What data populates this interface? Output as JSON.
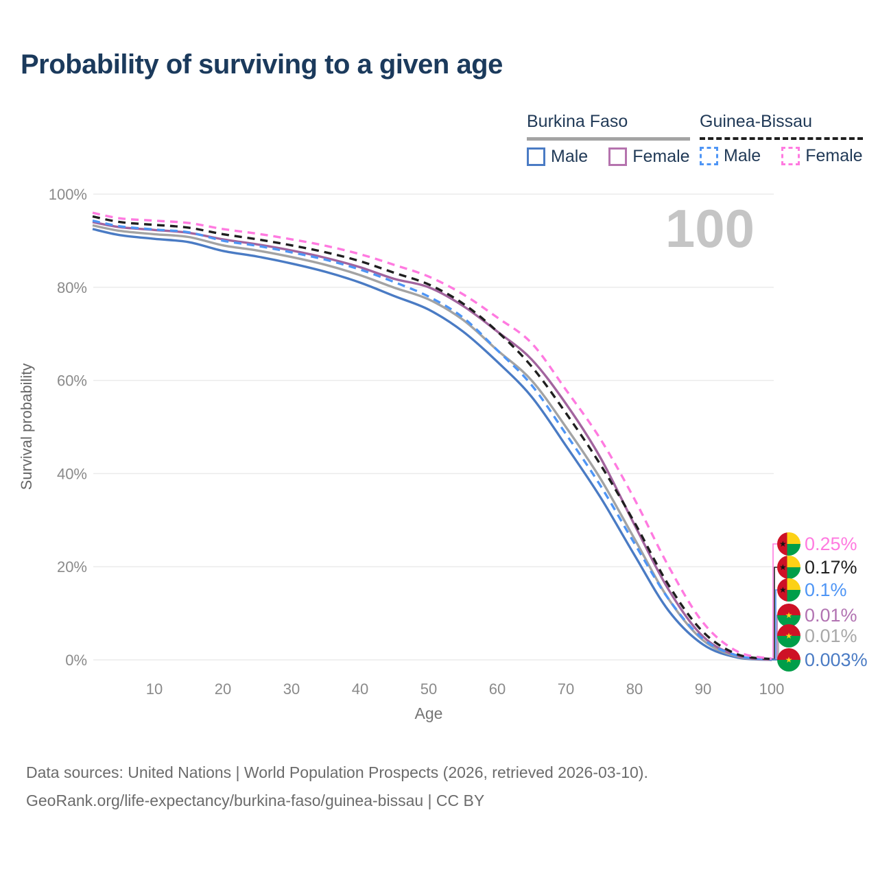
{
  "title": "Probability of surviving to a given age",
  "watermark": "100",
  "icons": {
    "star": "★"
  },
  "legend": {
    "groups": [
      {
        "name": "Burkina Faso",
        "line_style": "solid",
        "line_color": "#a3a3a3",
        "items": [
          {
            "label": "Male",
            "color": "#4a7bc4",
            "style": "solid"
          },
          {
            "label": "Female",
            "color": "#b573ae",
            "style": "solid"
          }
        ]
      },
      {
        "name": "Guinea-Bissau",
        "line_style": "dashed",
        "line_color": "#1f1f1f",
        "items": [
          {
            "label": "Male",
            "color": "#4e95f5",
            "style": "dashed"
          },
          {
            "label": "Female",
            "color": "#ff7ae0",
            "style": "dashed"
          }
        ]
      }
    ]
  },
  "chart_data": {
    "type": "line",
    "title": "Probability of surviving to a given age",
    "xlabel": "Age",
    "ylabel": "Survival probability",
    "x_ticks": [
      10,
      20,
      30,
      40,
      50,
      60,
      70,
      80,
      90,
      100
    ],
    "y_ticks": [
      "0%",
      "20%",
      "40%",
      "60%",
      "80%",
      "100%"
    ],
    "xlim": [
      1,
      100
    ],
    "ylim": [
      0,
      100
    ],
    "grid": true,
    "legend_position": "top-right",
    "x": [
      1,
      5,
      10,
      15,
      20,
      25,
      30,
      35,
      40,
      45,
      50,
      55,
      60,
      65,
      70,
      75,
      80,
      85,
      90,
      95,
      100
    ],
    "series": [
      {
        "name": "Burkina Faso Male",
        "country": "Burkina Faso",
        "sex": "Male",
        "color": "#4a7bc4",
        "dashed": false,
        "values": [
          92.5,
          91.2,
          90.4,
          89.7,
          87.8,
          86.6,
          85.1,
          83.3,
          81.0,
          78.1,
          75.2,
          70.5,
          64.0,
          56.5,
          46.0,
          35.0,
          22.5,
          10.5,
          3.3,
          0.5,
          0.003
        ]
      },
      {
        "name": "Burkina Faso Total",
        "country": "Burkina Faso",
        "sex": "Total",
        "color": "#a3a3a3",
        "dashed": false,
        "values": [
          93.3,
          92.1,
          91.4,
          90.8,
          89.0,
          87.9,
          86.5,
          84.8,
          82.6,
          79.9,
          77.4,
          73.0,
          66.5,
          60.0,
          50.0,
          39.0,
          26.0,
          13.0,
          4.2,
          0.7,
          0.01
        ]
      },
      {
        "name": "Burkina Faso Female",
        "country": "Burkina Faso",
        "sex": "Female",
        "color": "#a2649e",
        "dashed": false,
        "values": [
          94.0,
          92.9,
          92.3,
          91.7,
          90.3,
          89.2,
          87.9,
          86.3,
          84.3,
          81.8,
          80.0,
          76.0,
          70.5,
          64.5,
          55.0,
          43.5,
          29.0,
          15.0,
          5.0,
          0.9,
          0.01
        ]
      },
      {
        "name": "Guinea-Bissau Male",
        "country": "Guinea-Bissau",
        "sex": "Male",
        "color": "#4e95f5",
        "dashed": true,
        "values": [
          94.3,
          93.1,
          92.4,
          91.8,
          90.0,
          88.9,
          87.5,
          85.9,
          83.8,
          81.1,
          78.0,
          73.5,
          66.5,
          59.0,
          48.5,
          37.5,
          25.0,
          13.0,
          4.5,
          0.9,
          0.1
        ]
      },
      {
        "name": "Guinea-Bissau Total",
        "country": "Guinea-Bissau",
        "sex": "Total",
        "color": "#1f1f1f",
        "dashed": true,
        "values": [
          95.2,
          94.0,
          93.4,
          92.8,
          91.4,
          90.3,
          89.0,
          87.5,
          85.6,
          83.1,
          80.6,
          76.5,
          70.5,
          63.0,
          53.0,
          42.0,
          29.5,
          16.0,
          6.0,
          1.2,
          0.17
        ]
      },
      {
        "name": "Guinea-Bissau Female",
        "country": "Guinea-Bissau",
        "sex": "Female",
        "color": "#ff7ae0",
        "dashed": true,
        "values": [
          96.0,
          94.8,
          94.3,
          93.8,
          92.5,
          91.5,
          90.3,
          88.9,
          87.1,
          84.8,
          82.3,
          78.5,
          73.5,
          68.0,
          58.0,
          47.5,
          34.5,
          20.0,
          8.0,
          1.8,
          0.25
        ]
      }
    ]
  },
  "end_labels": [
    {
      "text": "0.25%",
      "value": 0.25,
      "color": "#ff7ae0",
      "flag": "gb",
      "series": 5
    },
    {
      "text": "0.17%",
      "value": 0.17,
      "color": "#1f1f1f",
      "flag": "gb",
      "series": 4
    },
    {
      "text": "0.1%",
      "value": 0.1,
      "color": "#4e95f5",
      "flag": "gb",
      "series": 3
    },
    {
      "text": "0.01%",
      "value": 0.01,
      "color": "#b273b2",
      "flag": "bf",
      "series": 2
    },
    {
      "text": "0.01%",
      "value": 0.01,
      "color": "#a8a8a8",
      "flag": "bf",
      "series": 1
    },
    {
      "text": "0.003%",
      "value": 0.003,
      "color": "#4a7bc4",
      "flag": "bf",
      "series": 0
    }
  ],
  "footer": {
    "line1": "Data sources: United Nations | World Population Prospects (2026, retrieved 2026-03-10).",
    "line2": "GeoRank.org/life-expectancy/burkina-faso/guinea-bissau | CC BY"
  }
}
